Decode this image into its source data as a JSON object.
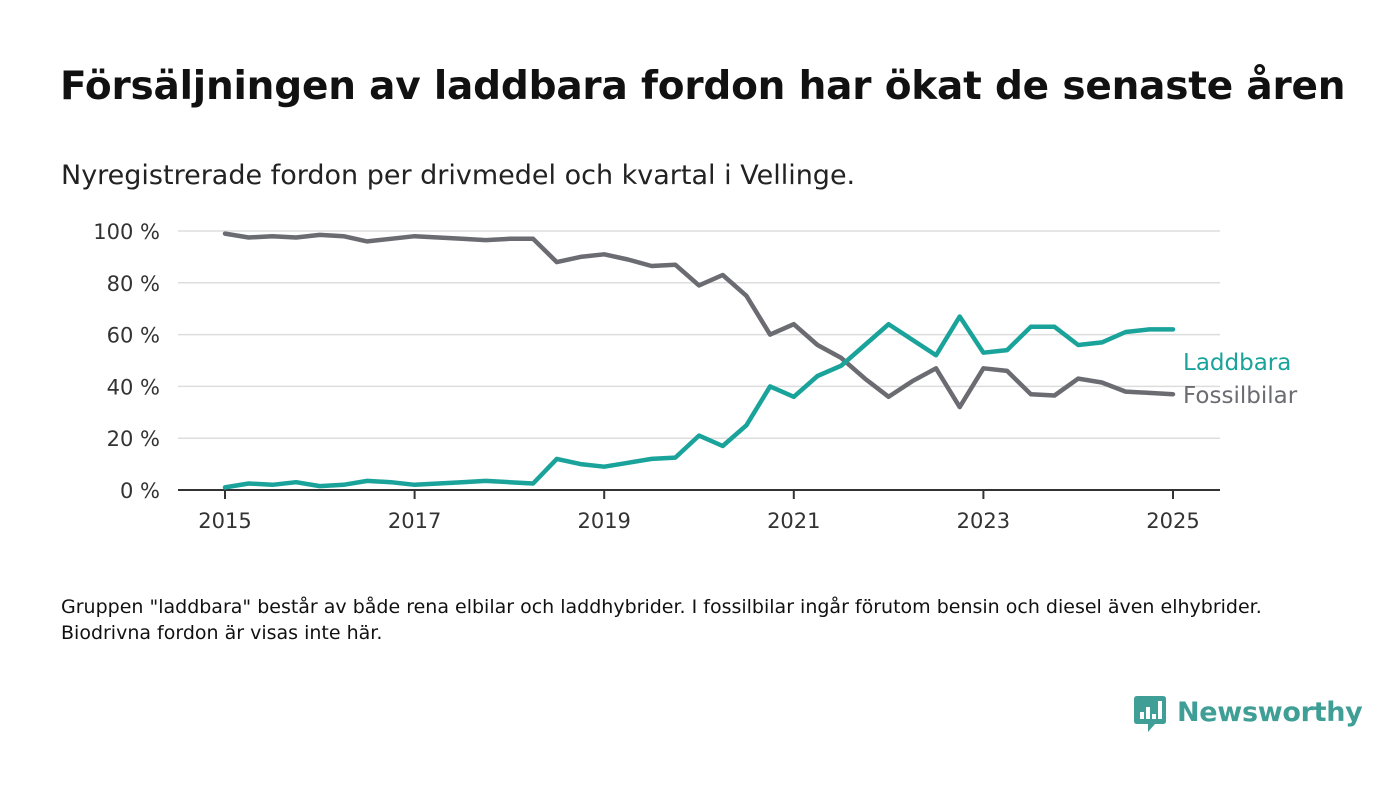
{
  "title": "Försäljningen av laddbara fordon har ökat de senaste åren",
  "subtitle": "Nyregistrerade fordon per drivmedel och kvartal i Vellinge.",
  "note": "Gruppen \"laddbara\" består av både rena elbilar och laddhybrider. I fossilbilar ingår förutom bensin och diesel även elhybrider. Biodrivna fordon är visas inte här.",
  "brand": {
    "name": "Newsworthy",
    "color": "#3f9e95",
    "icon": "bar-chart-speech-bubble-icon"
  },
  "colors": {
    "laddbara": "#1aa39a",
    "fossil": "#6b6b72",
    "grid": "#dddddd",
    "axis": "#333333"
  },
  "chart_data": {
    "type": "line",
    "xlabel": "",
    "ylabel": "",
    "y_unit": "%",
    "ylim": [
      0,
      100
    ],
    "xlim": [
      2014.9,
      2025.25
    ],
    "y_ticks": [
      0,
      20,
      40,
      60,
      80,
      100
    ],
    "y_tick_labels": [
      "0 %",
      "20 %",
      "40 %",
      "60 %",
      "80 %",
      "100 %"
    ],
    "x_ticks": [
      2015,
      2017,
      2019,
      2021,
      2023,
      2025
    ],
    "x_tick_labels": [
      "2015",
      "2017",
      "2019",
      "2021",
      "2023",
      "2025"
    ],
    "grid": "horizontal",
    "legend": "inline-right",
    "x": [
      2015.0,
      2015.25,
      2015.5,
      2015.75,
      2016.0,
      2016.25,
      2016.5,
      2016.75,
      2017.0,
      2017.25,
      2017.5,
      2017.75,
      2018.0,
      2018.25,
      2018.5,
      2018.75,
      2019.0,
      2019.25,
      2019.5,
      2019.75,
      2020.0,
      2020.25,
      2020.5,
      2020.75,
      2021.0,
      2021.25,
      2021.5,
      2021.75,
      2022.0,
      2022.25,
      2022.5,
      2022.75,
      2023.0,
      2023.25,
      2023.5,
      2023.75,
      2024.0,
      2024.25,
      2024.5,
      2024.75,
      2025.0
    ],
    "series": [
      {
        "name": "Laddbara",
        "color": "#1aa39a",
        "values": [
          1,
          2.5,
          2,
          3,
          1.5,
          2,
          3.5,
          3,
          2,
          2.5,
          3,
          3.5,
          3,
          2.5,
          12,
          10,
          9,
          10.5,
          12,
          12.5,
          21,
          17,
          25,
          40,
          36,
          44,
          48,
          56,
          64,
          58,
          52,
          67,
          53,
          54,
          63,
          63,
          56,
          57,
          61,
          62,
          62
        ]
      },
      {
        "name": "Fossilbilar",
        "color": "#6b6b72",
        "values": [
          99,
          97.5,
          98,
          97.5,
          98.5,
          98,
          96,
          97,
          98,
          97.5,
          97,
          96.5,
          97,
          97,
          88,
          90,
          91,
          89,
          86.5,
          87,
          79,
          83,
          75,
          60,
          64,
          56,
          51,
          43,
          36,
          42,
          47,
          32,
          47,
          46,
          37,
          36.5,
          43,
          41.5,
          38,
          37.5,
          37
        ]
      }
    ]
  }
}
